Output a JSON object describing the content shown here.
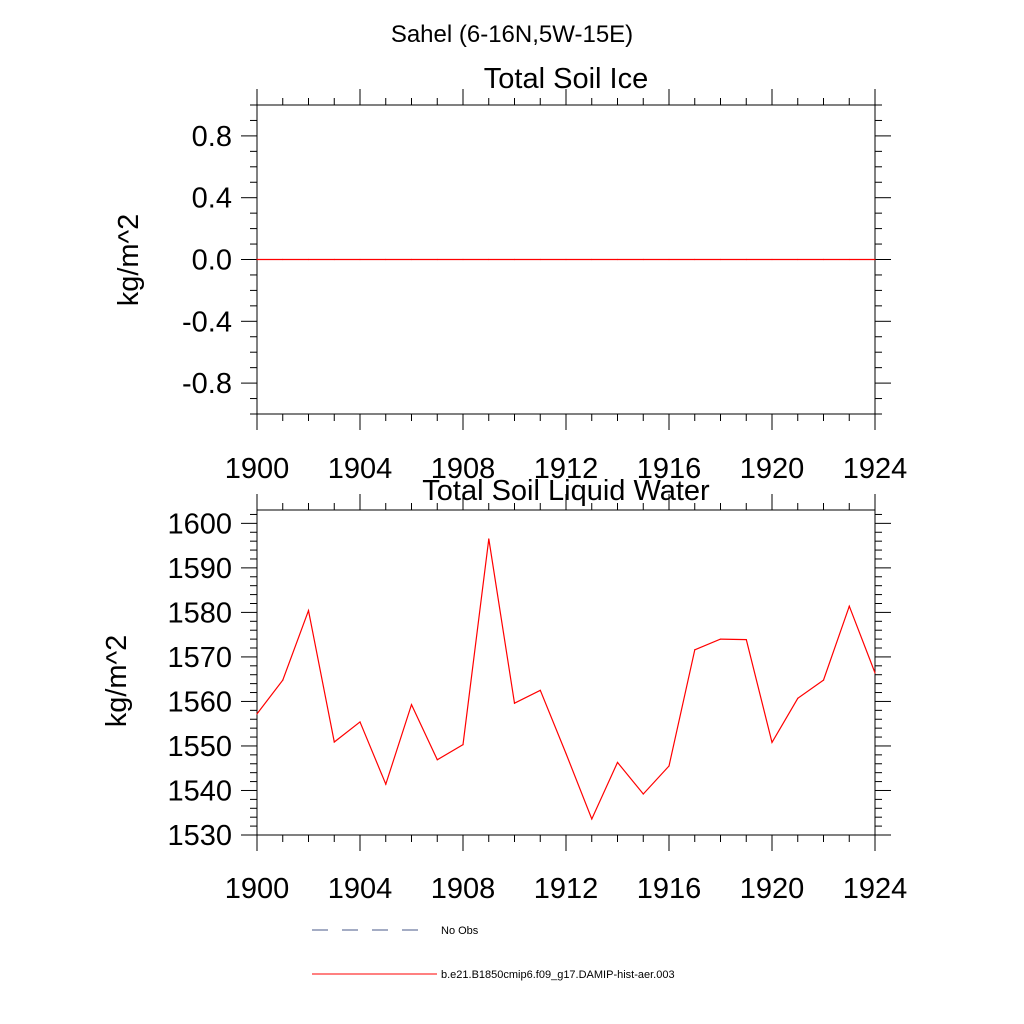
{
  "region_title": "Sahel (6-16N,5W-15E)",
  "colors": {
    "model": "#ff0000",
    "obs": "#4a5a8a"
  },
  "legend": {
    "obs_label": "No Obs",
    "model_label": "b.e21.B1850cmip6.f09_g17.DAMIP-hist-aer.003"
  },
  "chart_data": [
    {
      "type": "line",
      "title": "Total Soil Ice",
      "ylabel": "kg/m^2",
      "xlim": [
        1900,
        1924
      ],
      "ylim": [
        -1,
        1
      ],
      "xticks": [
        "1900",
        "1904",
        "1908",
        "1912",
        "1916",
        "1920",
        "1924"
      ],
      "yticks": [
        "0.8",
        "0.4",
        "0.0",
        "-0.4",
        "-0.8"
      ],
      "ytick_values": [
        0.8,
        0.4,
        0.0,
        -0.4,
        -0.8
      ],
      "grid": false,
      "x": [
        1900,
        1901,
        1902,
        1903,
        1904,
        1905,
        1906,
        1907,
        1908,
        1909,
        1910,
        1911,
        1912,
        1913,
        1914,
        1915,
        1916,
        1917,
        1918,
        1919,
        1920,
        1921,
        1922,
        1923,
        1924
      ],
      "series": [
        {
          "name": "b.e21.B1850cmip6.f09_g17.DAMIP-hist-aer.003",
          "values": [
            0,
            0,
            0,
            0,
            0,
            0,
            0,
            0,
            0,
            0,
            0,
            0,
            0,
            0,
            0,
            0,
            0,
            0,
            0,
            0,
            0,
            0,
            0,
            0,
            0
          ]
        }
      ]
    },
    {
      "type": "line",
      "title": "Total Soil Liquid Water",
      "ylabel": "kg/m^2",
      "xlim": [
        1900,
        1924
      ],
      "ylim": [
        1530,
        1603
      ],
      "xticks": [
        "1900",
        "1904",
        "1908",
        "1912",
        "1916",
        "1920",
        "1924"
      ],
      "yticks": [
        "1600",
        "1590",
        "1580",
        "1570",
        "1560",
        "1550",
        "1540",
        "1530"
      ],
      "ytick_values": [
        1600,
        1590,
        1580,
        1570,
        1560,
        1550,
        1540,
        1530
      ],
      "grid": false,
      "x": [
        1900,
        1901,
        1902,
        1903,
        1904,
        1905,
        1906,
        1907,
        1908,
        1909,
        1910,
        1911,
        1912,
        1913,
        1914,
        1915,
        1916,
        1917,
        1918,
        1919,
        1920,
        1921,
        1922,
        1923,
        1924
      ],
      "series": [
        {
          "name": "b.e21.B1850cmip6.f09_g17.DAMIP-hist-aer.003",
          "values": [
            1557.2,
            1564.8,
            1580.4,
            1550.9,
            1555.4,
            1541.4,
            1559.3,
            1546.9,
            1550.3,
            1596.5,
            1559.6,
            1562.5,
            1548.3,
            1533.6,
            1546.3,
            1539.2,
            1545.5,
            1571.6,
            1574.0,
            1573.9,
            1550.8,
            1560.7,
            1564.8,
            1581.4,
            1566.4
          ]
        }
      ]
    }
  ]
}
